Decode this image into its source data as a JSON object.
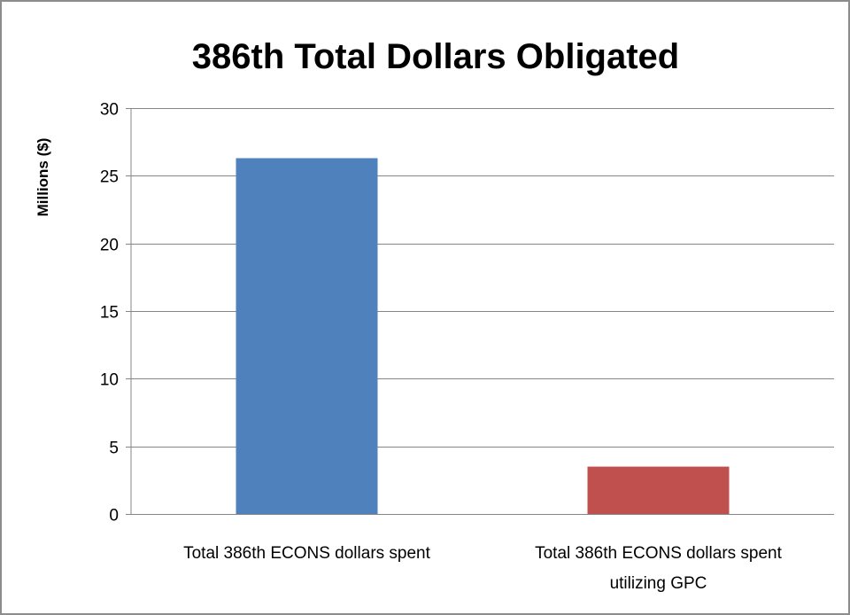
{
  "chart_data": {
    "type": "bar",
    "title": "386th Total Dollars Obligated",
    "xlabel": "",
    "ylabel": "Millions ($)",
    "ylim": [
      0,
      30
    ],
    "yticks": [
      0,
      5,
      10,
      15,
      20,
      25,
      30
    ],
    "grid": true,
    "legend": "none",
    "categories": [
      [
        "Total 386th ECONS dollars spent"
      ],
      [
        "Total 386th ECONS dollars spent",
        "utilizing GPC"
      ]
    ],
    "values": [
      26.3,
      3.5
    ],
    "colors": [
      "#4F81BD",
      "#C0504D"
    ]
  }
}
